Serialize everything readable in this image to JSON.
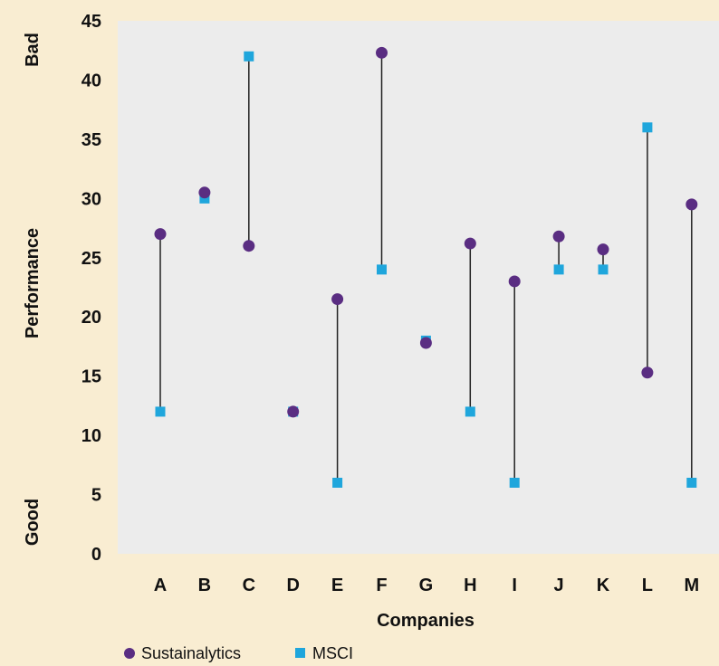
{
  "chart_data": {
    "type": "scatter",
    "xlabel": "Companies",
    "ylabel": "Performance",
    "y_top_label": "Bad",
    "y_bottom_label": "Good",
    "ylim": [
      0,
      45
    ],
    "yticks": [
      0,
      5,
      10,
      15,
      20,
      25,
      30,
      35,
      40,
      45
    ],
    "grid": false,
    "legend_position": "bottom-left",
    "categories": [
      "A",
      "B",
      "C",
      "D",
      "E",
      "F",
      "G",
      "H",
      "I",
      "J",
      "K",
      "L",
      "M"
    ],
    "series": [
      {
        "name": "Sustainalytics",
        "marker": "circle",
        "color": "#5a2d82",
        "values": [
          27,
          30.5,
          26,
          12,
          21.5,
          42.3,
          17.8,
          26.2,
          23,
          26.8,
          25.7,
          15.3,
          29.5
        ]
      },
      {
        "name": "MSCI",
        "marker": "square",
        "color": "#1fa6dc",
        "values": [
          12,
          30,
          42,
          12,
          6,
          24,
          18,
          12,
          6,
          24,
          24,
          36,
          6
        ]
      }
    ]
  },
  "colors": {
    "background": "#f9edd2",
    "plot_background": "#ececec",
    "connector": "#222222"
  }
}
